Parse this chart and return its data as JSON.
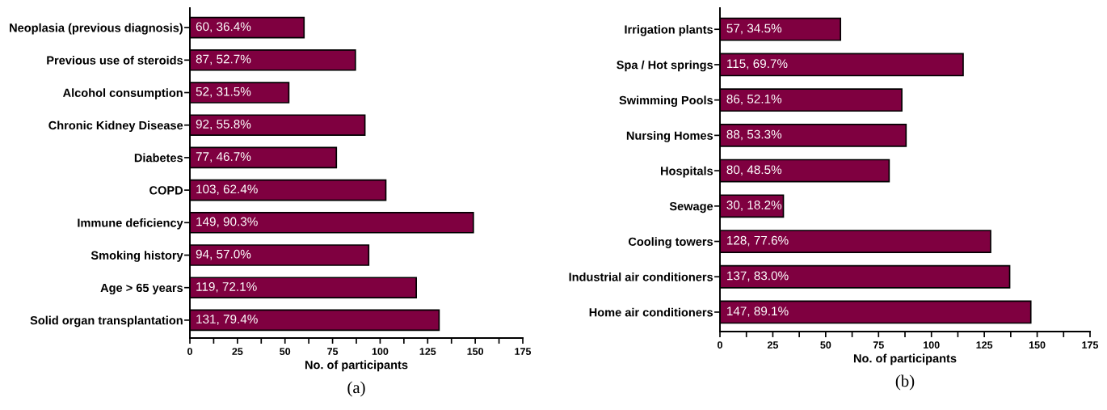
{
  "chart_data": [
    {
      "type": "bar",
      "orientation": "horizontal",
      "xlabel": "No. of participants",
      "annotations": [
        "(a)"
      ],
      "categories": [
        "Neoplasia (previous diagnosis)",
        "Previous use of steroids",
        "Alcohol consumption",
        "Chronic Kidney Disease",
        "Diabetes",
        "COPD",
        "Immune deficiency",
        "Smoking history",
        "Age > 65 years",
        "Solid organ transplantation"
      ],
      "values": [
        60,
        87,
        52,
        92,
        77,
        103,
        149,
        94,
        119,
        131
      ],
      "value_labels": [
        "60, 36.4%",
        "87, 52.7%",
        "52, 31.5%",
        "92, 55.8%",
        "77, 46.7%",
        "103, 62.4%",
        "149, 90.3%",
        "94, 57.0%",
        "119, 72.1%",
        "131, 79.4%"
      ],
      "color": "#7f0040",
      "xlim": [
        0,
        175
      ],
      "xticks": [
        0,
        {
          "value": 12.5,
          "label": null
        },
        25,
        {
          "value": 37.5,
          "label": null
        },
        50,
        {
          "value": 62.5,
          "label": null
        },
        75,
        {
          "value": 87.5,
          "label": null
        },
        100,
        {
          "value": 112.5,
          "label": null
        },
        125,
        {
          "value": 137.5,
          "label": null
        },
        150,
        {
          "value": 162.5,
          "label": null
        },
        175
      ],
      "grid": false,
      "legend": false
    },
    {
      "type": "bar",
      "orientation": "horizontal",
      "xlabel": "No. of participants",
      "annotations": [
        "(b)"
      ],
      "categories": [
        "Irrigation plants",
        "Spa / Hot springs",
        "Swimming Pools",
        "Nursing Homes",
        "Hospitals",
        "Sewage",
        "Cooling towers",
        "Industrial air conditioners",
        "Home air conditioners"
      ],
      "values": [
        57,
        115,
        86,
        88,
        80,
        30,
        128,
        137,
        147
      ],
      "value_labels": [
        "57, 34.5%",
        "115, 69.7%",
        "86, 52.1%",
        "88, 53.3%",
        "80, 48.5%",
        "30, 18.2%",
        "128, 77.6%",
        "137, 83.0%",
        "147, 89.1%"
      ],
      "color": "#7f0040",
      "xlim": [
        0,
        175
      ],
      "xticks": [
        0,
        {
          "value": 12.5,
          "label": null
        },
        25,
        {
          "value": 37.5,
          "label": null
        },
        50,
        {
          "value": 62.5,
          "label": null
        },
        75,
        {
          "value": 87.5,
          "label": null
        },
        100,
        {
          "value": 112.5,
          "label": null
        },
        125,
        {
          "value": 137.5,
          "label": null
        },
        150,
        {
          "value": 162.5,
          "label": null
        },
        175
      ],
      "grid": false,
      "legend": false
    }
  ]
}
